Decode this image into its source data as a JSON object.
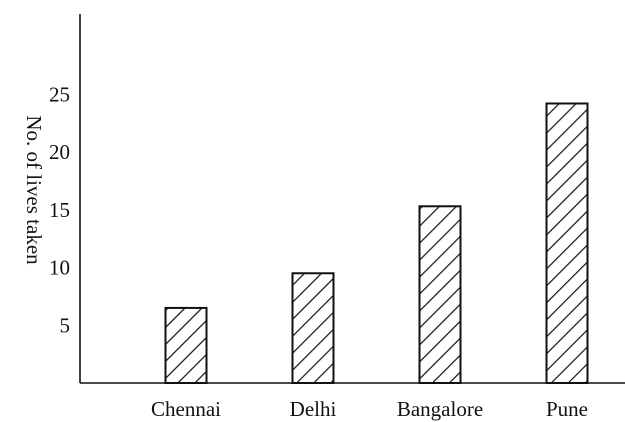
{
  "chart_data": {
    "type": "bar",
    "categories": [
      "Chennai",
      "Delhi",
      "Bangalore",
      "Pune"
    ],
    "values": [
      6.5,
      9.5,
      15.3,
      24.2
    ],
    "ylabel": "No. of lives taken",
    "xlabel": "",
    "title": "",
    "yticks": [
      5,
      10,
      15,
      20,
      25
    ],
    "ylim": [
      0,
      32
    ],
    "grid": false,
    "legend": "none",
    "bar_fill": "diagonal-hatch",
    "colors": {
      "ink": "#111111",
      "background": "#ffffff"
    }
  }
}
